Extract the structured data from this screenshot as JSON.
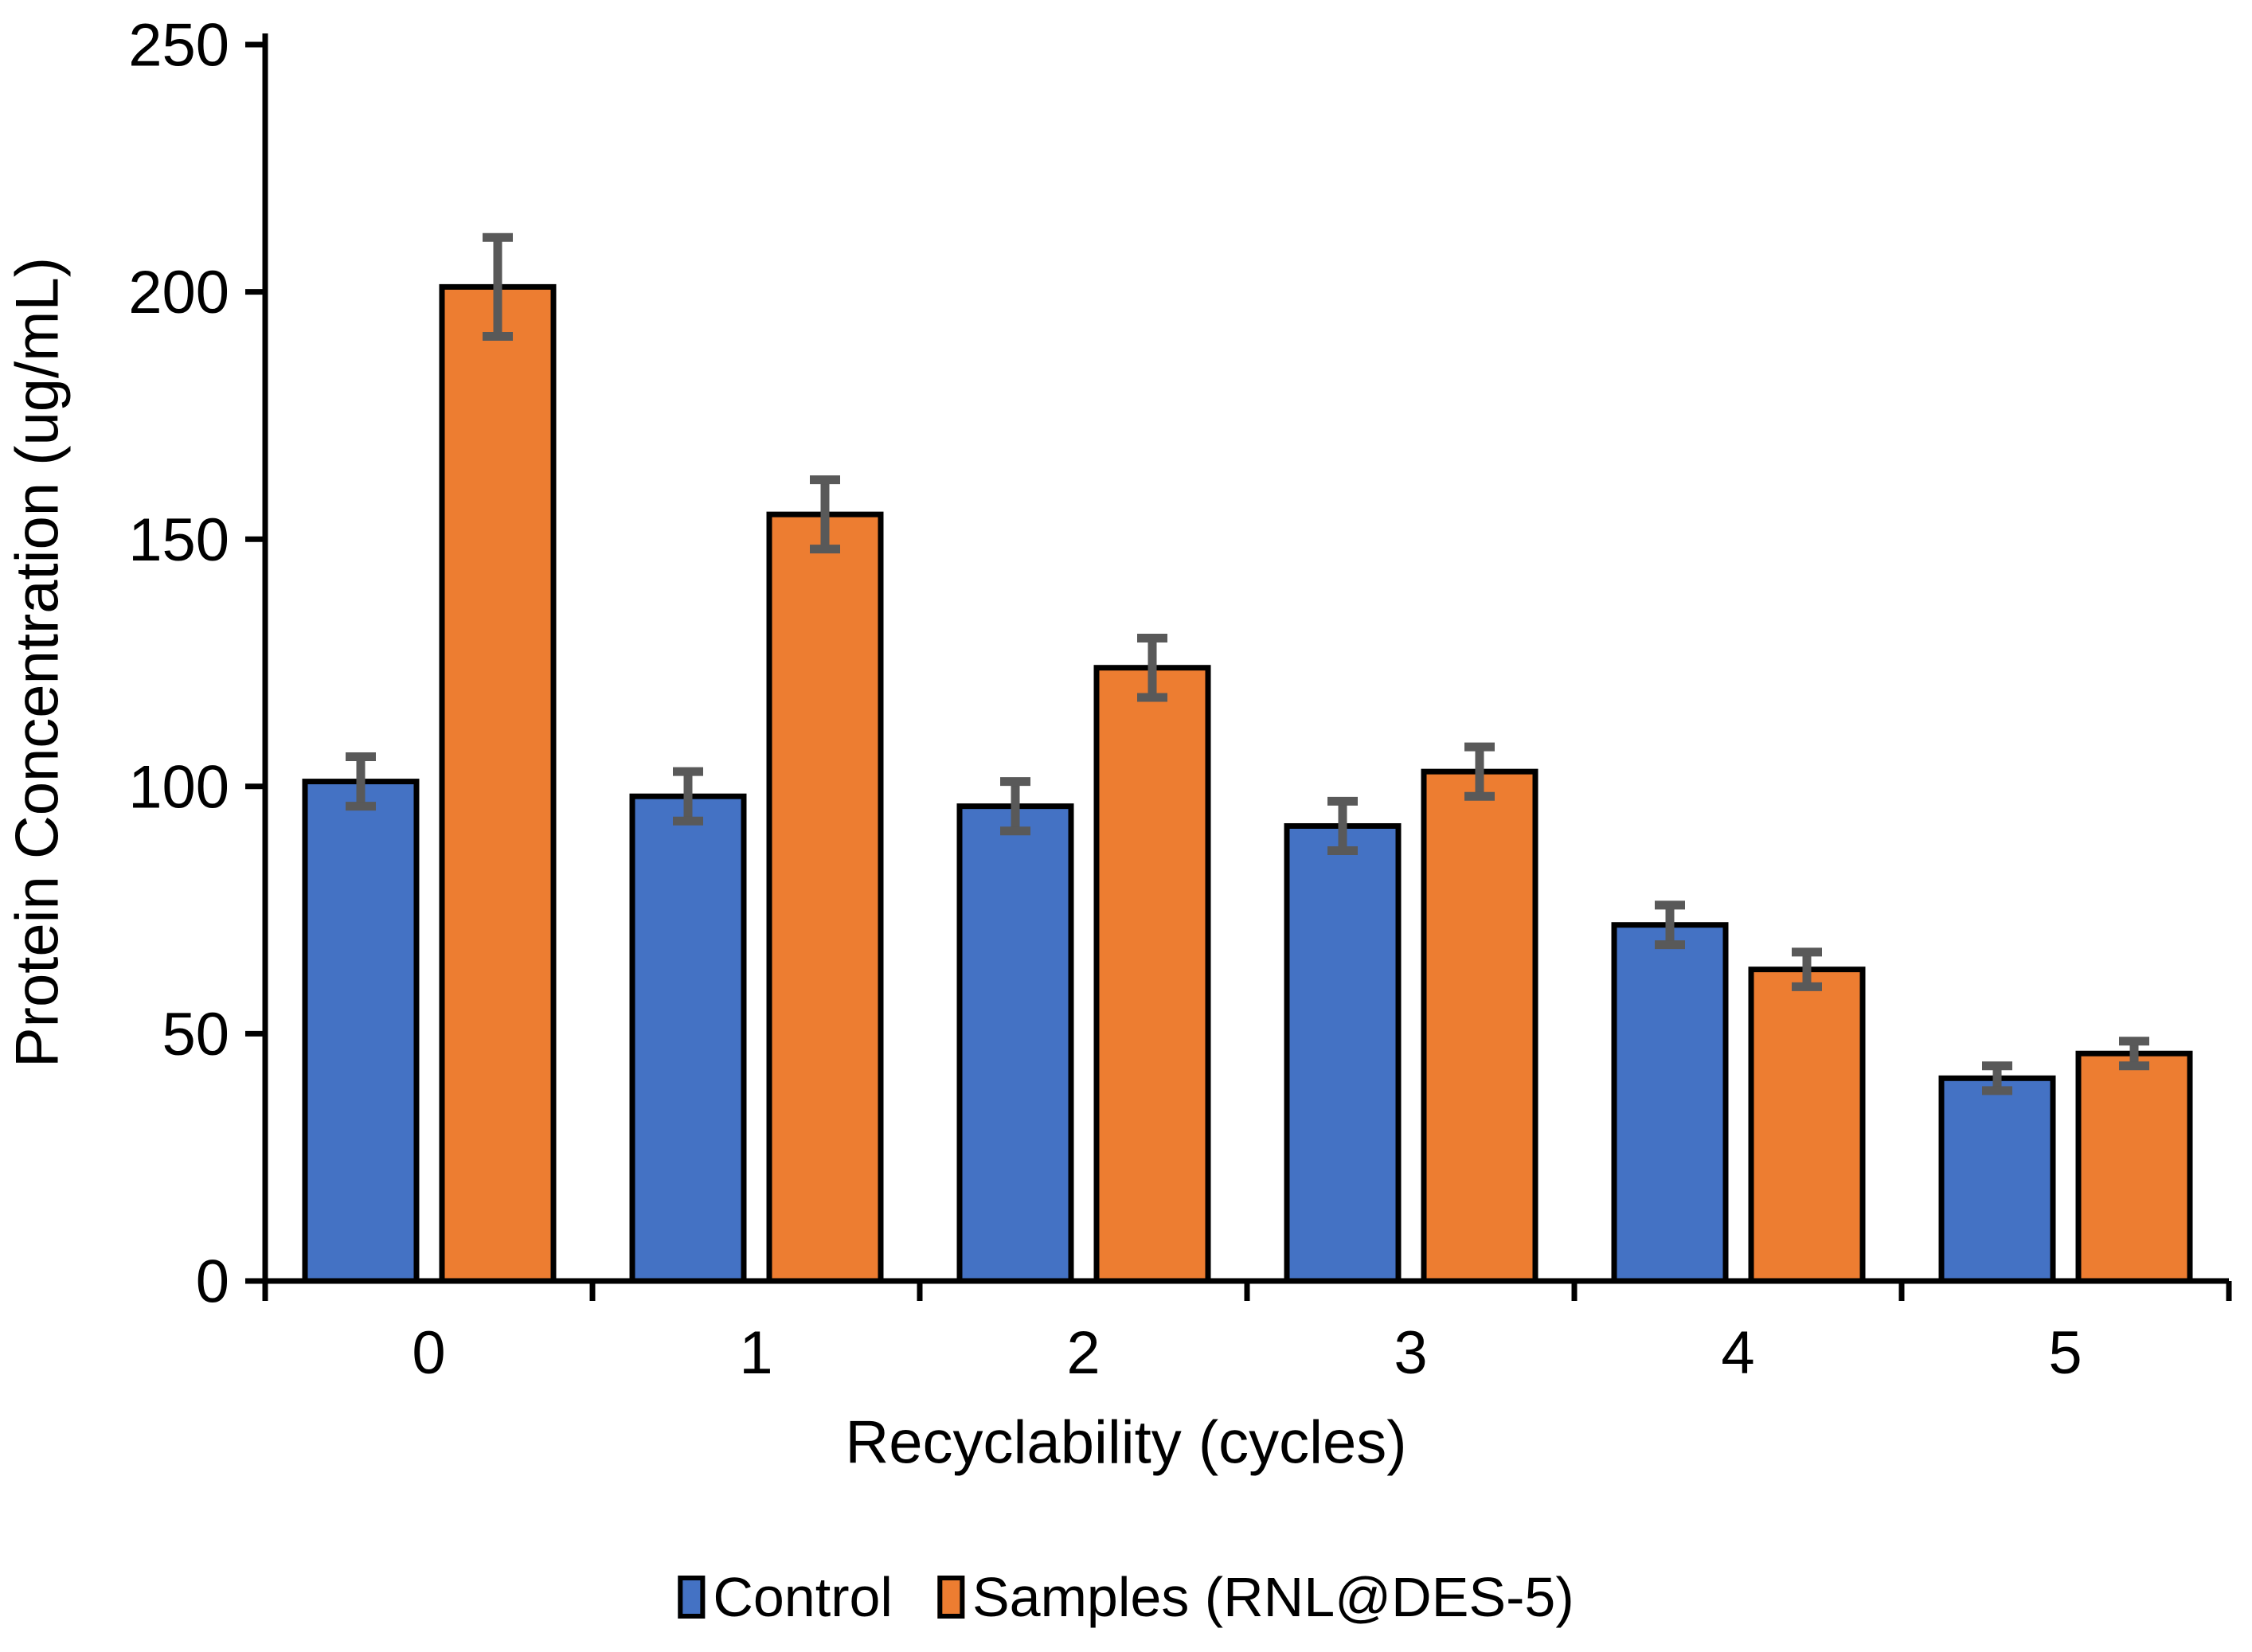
{
  "chart_data": {
    "type": "bar",
    "title": "",
    "xlabel": "Recyclability (cycles)",
    "ylabel": "Protein Concentration (ug/mL)",
    "categories": [
      "0",
      "1",
      "2",
      "3",
      "4",
      "5"
    ],
    "y_ticks": [
      0,
      50,
      100,
      150,
      200,
      250
    ],
    "ylim": [
      0,
      250
    ],
    "grid": false,
    "legend_position": "bottom",
    "series": [
      {
        "name": "Control",
        "color": "#4472C4",
        "values": [
          101,
          98,
          96,
          92,
          72,
          41
        ],
        "errors": [
          5,
          5,
          5,
          5,
          4,
          2.5
        ]
      },
      {
        "name": "Samples (RNL@DES-5)",
        "color": "#ED7D31",
        "values": [
          201,
          155,
          124,
          103,
          63,
          46
        ],
        "errors": [
          10,
          7,
          6,
          5,
          3.5,
          2.5
        ]
      }
    ],
    "bar_border_color": "#000000",
    "error_bar_color": "#595959",
    "axis_color": "#000000"
  }
}
